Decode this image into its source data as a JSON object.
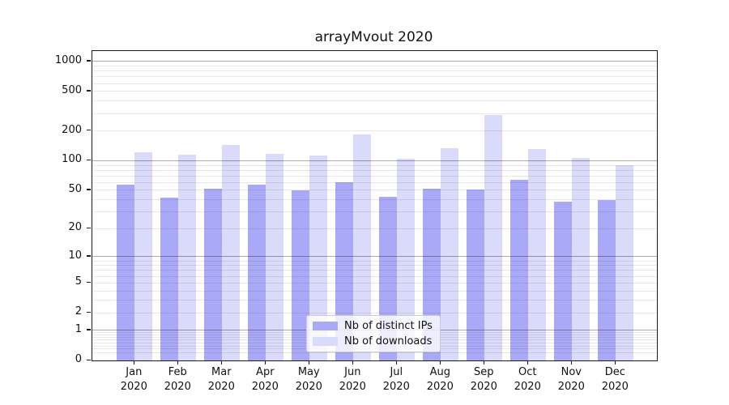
{
  "chart_data": {
    "type": "bar",
    "title": "arrayMvout 2020",
    "categories": [
      "Jan 2020",
      "Feb 2020",
      "Mar 2020",
      "Apr 2020",
      "May 2020",
      "Jun 2020",
      "Jul 2020",
      "Aug 2020",
      "Sep 2020",
      "Oct 2020",
      "Nov 2020",
      "Dec 2020"
    ],
    "months": [
      "Jan",
      "Feb",
      "Mar",
      "Apr",
      "May",
      "Jun",
      "Jul",
      "Aug",
      "Sep",
      "Oct",
      "Nov",
      "Dec"
    ],
    "year_label": "2020",
    "series": [
      {
        "name": "Nb of distinct IPs",
        "color": "#a9a9f7",
        "values": [
          57,
          42,
          52,
          57,
          50,
          61,
          43,
          52,
          51,
          64,
          38,
          40
        ]
      },
      {
        "name": "Nb of downloads",
        "color": "#dadafa",
        "values": [
          121,
          116,
          144,
          118,
          112,
          186,
          105,
          133,
          287,
          132,
          107,
          90
        ]
      }
    ],
    "yscale": "log1p",
    "yticks": [
      0,
      1,
      2,
      5,
      10,
      20,
      50,
      100,
      200,
      500,
      1000
    ],
    "minor_gridlines": [
      0.2,
      0.3,
      0.4,
      0.5,
      0.6,
      0.7,
      0.8,
      0.9,
      2,
      3,
      4,
      5,
      6,
      7,
      8,
      9,
      20,
      30,
      40,
      50,
      60,
      70,
      80,
      90,
      200,
      300,
      400,
      500,
      600,
      700,
      800,
      900
    ],
    "major_gridlines": [
      1,
      10,
      100,
      1000
    ],
    "ylim": [
      0,
      1250
    ],
    "grid": "on",
    "legend_position": "lower center"
  }
}
